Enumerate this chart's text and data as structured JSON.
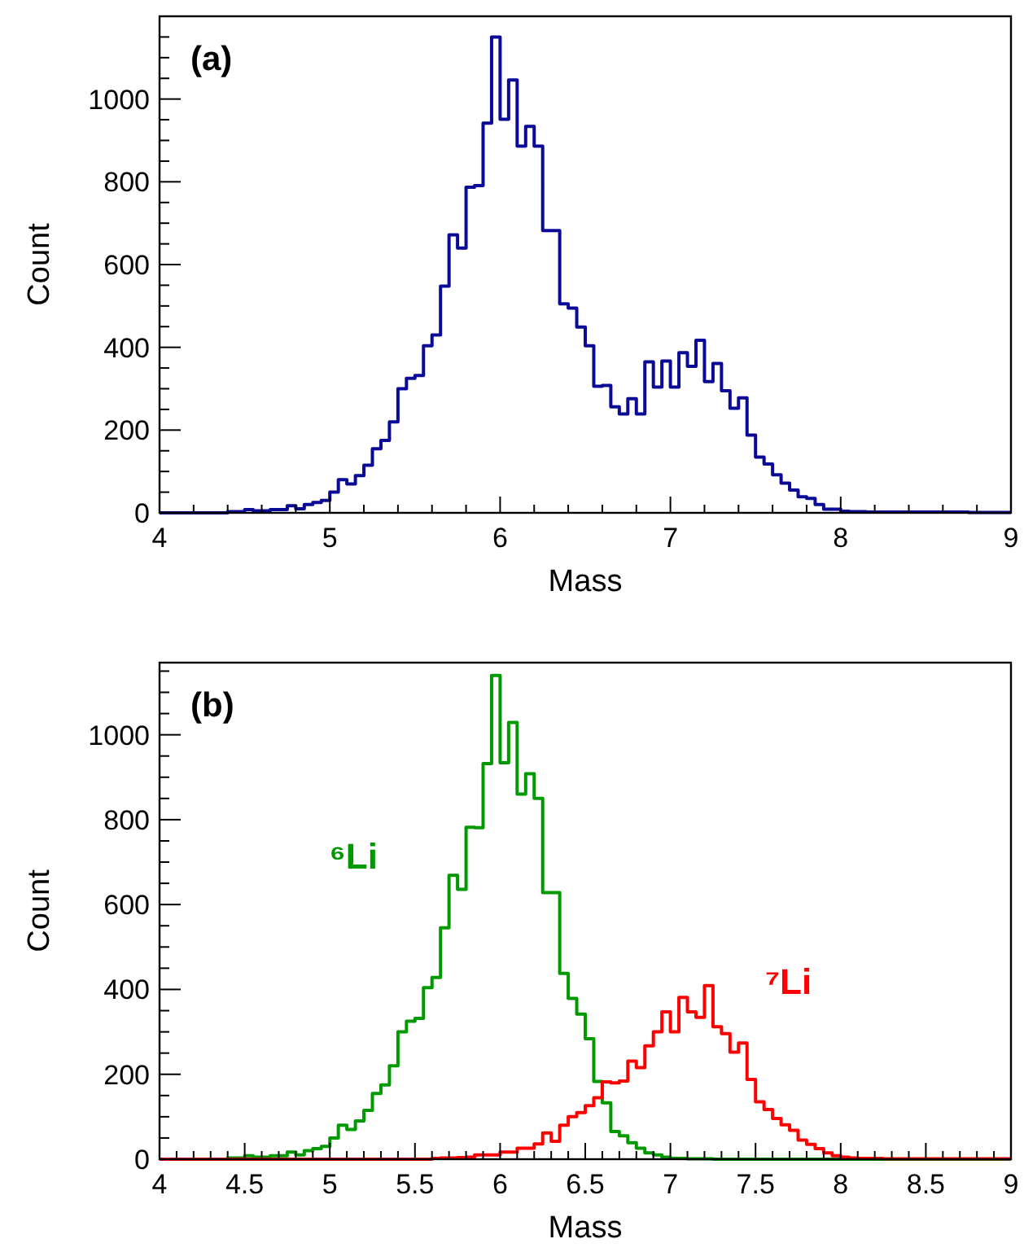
{
  "chart_data": [
    {
      "type": "histogram",
      "title": "(a)",
      "xlabel": "Mass",
      "ylabel": "Count",
      "color": "#0a0a96",
      "bins": [
        4,
        4.05,
        4.1,
        4.15,
        4.2,
        4.25,
        4.3,
        4.35,
        4.4,
        4.45,
        4.5,
        4.55,
        4.6,
        4.65,
        4.7,
        4.75,
        4.8,
        4.85,
        4.9,
        4.95,
        5,
        5.05,
        5.1,
        5.15,
        5.2,
        5.25,
        5.3,
        5.35,
        5.4,
        5.45,
        5.5,
        5.55,
        5.6,
        5.65,
        5.7,
        5.75,
        5.8,
        5.85,
        5.9,
        5.95,
        6,
        6.05,
        6.1,
        6.15,
        6.2,
        6.25,
        6.3,
        6.35,
        6.4,
        6.45,
        6.5,
        6.55,
        6.6,
        6.65,
        6.7,
        6.75,
        6.8,
        6.85,
        6.9,
        6.95,
        7,
        7.05,
        7.1,
        7.15,
        7.2,
        7.25,
        7.3,
        7.35,
        7.4,
        7.45,
        7.5,
        7.55,
        7.6,
        7.65,
        7.7,
        7.75,
        7.8,
        7.85,
        7.9,
        7.95,
        8,
        8.05,
        8.1,
        8.15,
        8.2,
        8.25,
        8.3,
        8.35,
        8.4,
        8.45,
        8.5,
        8.55,
        8.6,
        8.65,
        8.7,
        8.75,
        8.8,
        8.85,
        8.9,
        8.95,
        9
      ],
      "values": [
        0,
        0,
        0,
        0,
        0,
        0,
        0,
        0,
        3,
        3,
        8,
        5,
        5,
        8,
        8,
        17,
        10,
        20,
        25,
        30,
        50,
        80,
        70,
        90,
        115,
        155,
        175,
        220,
        300,
        325,
        332,
        404,
        430,
        548,
        672,
        640,
        787,
        791,
        942,
        1150,
        951,
        1046,
        886,
        934,
        886,
        682,
        682,
        505,
        495,
        449,
        404,
        306,
        308,
        256,
        239,
        276,
        239,
        365,
        304,
        367,
        304,
        387,
        354,
        417,
        317,
        361,
        295,
        253,
        278,
        188,
        135,
        118,
        92,
        72,
        55,
        39,
        35,
        20,
        9,
        9,
        4,
        3,
        3,
        2,
        2,
        2,
        2,
        2,
        2,
        2,
        2,
        2,
        2,
        2,
        2,
        1,
        1,
        1,
        1,
        1
      ],
      "xlim": [
        4,
        9
      ],
      "ylim": [
        0,
        1200
      ],
      "xticks": [
        4,
        {
          "value": 4.2,
          "label": null
        },
        {
          "value": 4.4,
          "label": null
        },
        {
          "value": 4.6,
          "label": null
        },
        {
          "value": 4.8,
          "label": null
        },
        5,
        {
          "value": 5.2,
          "label": null
        },
        {
          "value": 5.4,
          "label": null
        },
        {
          "value": 5.6,
          "label": null
        },
        {
          "value": 5.8,
          "label": null
        },
        6,
        {
          "value": 6.2,
          "label": null
        },
        {
          "value": 6.4,
          "label": null
        },
        {
          "value": 6.6,
          "label": null
        },
        {
          "value": 6.8,
          "label": null
        },
        7,
        {
          "value": 7.2,
          "label": null
        },
        {
          "value": 7.4,
          "label": null
        },
        {
          "value": 7.6,
          "label": null
        },
        {
          "value": 7.8,
          "label": null
        },
        8,
        {
          "value": 8.2,
          "label": null
        },
        {
          "value": 8.4,
          "label": null
        },
        {
          "value": 8.6,
          "label": null
        },
        {
          "value": 8.8,
          "label": null
        },
        9
      ],
      "yticks": [
        0,
        {
          "value": 50,
          "label": null
        },
        {
          "value": 100,
          "label": null
        },
        {
          "value": 150,
          "label": null
        },
        200,
        {
          "value": 250,
          "label": null
        },
        {
          "value": 300,
          "label": null
        },
        {
          "value": 350,
          "label": null
        },
        400,
        {
          "value": 450,
          "label": null
        },
        {
          "value": 500,
          "label": null
        },
        {
          "value": 550,
          "label": null
        },
        600,
        {
          "value": 650,
          "label": null
        },
        {
          "value": 700,
          "label": null
        },
        {
          "value": 750,
          "label": null
        },
        800,
        {
          "value": 850,
          "label": null
        },
        {
          "value": 900,
          "label": null
        },
        {
          "value": 950,
          "label": null
        },
        1000,
        {
          "value": 1050,
          "label": null
        },
        {
          "value": 1100,
          "label": null
        },
        {
          "value": 1150,
          "label": null
        }
      ]
    },
    {
      "type": "histogram",
      "title": "(b)",
      "xlabel": "Mass",
      "ylabel": "Count",
      "bins": [
        4,
        4.05,
        4.1,
        4.15,
        4.2,
        4.25,
        4.3,
        4.35,
        4.4,
        4.45,
        4.5,
        4.55,
        4.6,
        4.65,
        4.7,
        4.75,
        4.8,
        4.85,
        4.9,
        4.95,
        5,
        5.05,
        5.1,
        5.15,
        5.2,
        5.25,
        5.3,
        5.35,
        5.4,
        5.45,
        5.5,
        5.55,
        5.6,
        5.65,
        5.7,
        5.75,
        5.8,
        5.85,
        5.9,
        5.95,
        6,
        6.05,
        6.1,
        6.15,
        6.2,
        6.25,
        6.3,
        6.35,
        6.4,
        6.45,
        6.5,
        6.55,
        6.6,
        6.65,
        6.7,
        6.75,
        6.8,
        6.85,
        6.9,
        6.95,
        7,
        7.05,
        7.1,
        7.15,
        7.2,
        7.25,
        7.3,
        7.35,
        7.4,
        7.45,
        7.5,
        7.55,
        7.6,
        7.65,
        7.7,
        7.75,
        7.8,
        7.85,
        7.9,
        7.95,
        8,
        8.05,
        8.1,
        8.15,
        8.2,
        8.25,
        8.3,
        8.35,
        8.4,
        8.45,
        8.5,
        8.55,
        8.6,
        8.65,
        8.7,
        8.75,
        8.8,
        8.85,
        8.9,
        8.95,
        9
      ],
      "series": [
        {
          "name": "⁶Li",
          "color": "#009a00",
          "values": [
            0,
            0,
            0,
            0,
            0,
            0,
            0,
            0,
            3,
            3,
            8,
            5,
            5,
            8,
            8,
            17,
            10,
            20,
            25,
            30,
            50,
            80,
            70,
            90,
            115,
            155,
            175,
            220,
            300,
            325,
            332,
            404,
            428,
            545,
            669,
            636,
            782,
            781,
            932,
            1140,
            934,
            1029,
            860,
            908,
            850,
            628,
            628,
            438,
            379,
            342,
            284,
            183,
            133,
            65,
            55,
            39,
            26,
            15,
            10,
            5,
            2,
            2,
            1,
            1,
            1,
            0,
            0,
            0,
            0,
            0,
            0,
            0,
            0,
            0,
            0,
            0,
            0,
            0,
            0,
            0,
            0,
            0,
            0,
            0,
            0,
            0,
            0,
            0,
            0,
            0,
            0,
            0,
            0,
            0,
            0,
            0,
            0,
            0,
            0,
            0
          ]
        },
        {
          "name": "⁷Li",
          "color": "#ff0000",
          "values": [
            0,
            0,
            0,
            0,
            0,
            0,
            0,
            0,
            0,
            0,
            0,
            0,
            0,
            0,
            0,
            0,
            0,
            0,
            0,
            0,
            0,
            0,
            0,
            0,
            0,
            0,
            0,
            0,
            0,
            0,
            0,
            0,
            2,
            3,
            3,
            4,
            5,
            10,
            10,
            10,
            17,
            17,
            26,
            26,
            36,
            62,
            42,
            80,
            100,
            110,
            126,
            145,
            182,
            180,
            184,
            231,
            216,
            267,
            300,
            347,
            300,
            381,
            347,
            334,
            409,
            312,
            296,
            252,
            274,
            188,
            135,
            117,
            96,
            81,
            68,
            45,
            35,
            25,
            15,
            8,
            5,
            3,
            2,
            2,
            2,
            1,
            1,
            1,
            1,
            1,
            1,
            1,
            1,
            1,
            1,
            1,
            1,
            1,
            1,
            1
          ]
        }
      ],
      "xlim": [
        4,
        9
      ],
      "ylim": [
        0,
        1170
      ],
      "xticks": [
        4,
        {
          "value": 4.1,
          "label": null
        },
        {
          "value": 4.2,
          "label": null
        },
        {
          "value": 4.3,
          "label": null
        },
        {
          "value": 4.4,
          "label": null
        },
        4.5,
        {
          "value": 4.6,
          "label": null
        },
        {
          "value": 4.7,
          "label": null
        },
        {
          "value": 4.8,
          "label": null
        },
        {
          "value": 4.9,
          "label": null
        },
        5,
        {
          "value": 5.1,
          "label": null
        },
        {
          "value": 5.2,
          "label": null
        },
        {
          "value": 5.3,
          "label": null
        },
        {
          "value": 5.4,
          "label": null
        },
        5.5,
        {
          "value": 5.6,
          "label": null
        },
        {
          "value": 5.7,
          "label": null
        },
        {
          "value": 5.8,
          "label": null
        },
        {
          "value": 5.9,
          "label": null
        },
        6,
        {
          "value": 6.1,
          "label": null
        },
        {
          "value": 6.2,
          "label": null
        },
        {
          "value": 6.3,
          "label": null
        },
        {
          "value": 6.4,
          "label": null
        },
        6.5,
        {
          "value": 6.6,
          "label": null
        },
        {
          "value": 6.7,
          "label": null
        },
        {
          "value": 6.8,
          "label": null
        },
        {
          "value": 6.9,
          "label": null
        },
        7,
        {
          "value": 7.1,
          "label": null
        },
        {
          "value": 7.2,
          "label": null
        },
        {
          "value": 7.3,
          "label": null
        },
        {
          "value": 7.4,
          "label": null
        },
        7.5,
        {
          "value": 7.6,
          "label": null
        },
        {
          "value": 7.7,
          "label": null
        },
        {
          "value": 7.8,
          "label": null
        },
        {
          "value": 7.9,
          "label": null
        },
        8,
        {
          "value": 8.1,
          "label": null
        },
        {
          "value": 8.2,
          "label": null
        },
        {
          "value": 8.3,
          "label": null
        },
        {
          "value": 8.4,
          "label": null
        },
        8.5,
        {
          "value": 8.6,
          "label": null
        },
        {
          "value": 8.7,
          "label": null
        },
        {
          "value": 8.8,
          "label": null
        },
        {
          "value": 8.9,
          "label": null
        },
        9
      ],
      "yticks": [
        0,
        {
          "value": 50,
          "label": null
        },
        {
          "value": 100,
          "label": null
        },
        {
          "value": 150,
          "label": null
        },
        200,
        {
          "value": 250,
          "label": null
        },
        {
          "value": 300,
          "label": null
        },
        {
          "value": 350,
          "label": null
        },
        400,
        {
          "value": 450,
          "label": null
        },
        {
          "value": 500,
          "label": null
        },
        {
          "value": 550,
          "label": null
        },
        600,
        {
          "value": 650,
          "label": null
        },
        {
          "value": 700,
          "label": null
        },
        {
          "value": 750,
          "label": null
        },
        800,
        {
          "value": 850,
          "label": null
        },
        {
          "value": 900,
          "label": null
        },
        {
          "value": 950,
          "label": null
        },
        1000,
        {
          "value": 1050,
          "label": null
        },
        {
          "value": 1100,
          "label": null
        },
        {
          "value": 1150,
          "label": null
        }
      ]
    }
  ]
}
